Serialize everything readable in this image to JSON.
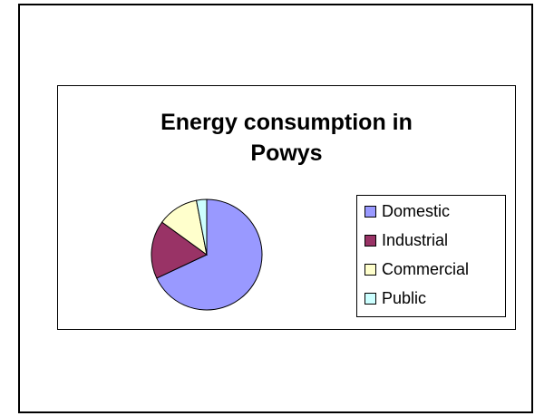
{
  "chart_data": {
    "type": "pie",
    "title": "Energy consumption in Powys",
    "title_lines": [
      "Energy consumption in",
      "Powys"
    ],
    "categories": [
      "Domestic",
      "Industrial",
      "Commercial",
      "Public"
    ],
    "values": [
      68,
      17,
      12,
      3
    ],
    "colors": [
      "#9999FF",
      "#993366",
      "#FFFFCC",
      "#CCFFFF"
    ],
    "legend_position": "right",
    "start_angle_deg": 0
  }
}
